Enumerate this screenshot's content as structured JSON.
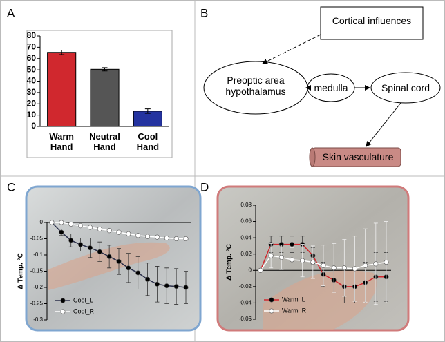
{
  "panel_labels": [
    "A",
    "B",
    "C",
    "D"
  ],
  "chart_data": [
    {
      "type": "bar",
      "categories": [
        "Warm Hand",
        "Neutral Hand",
        "Cool Hand"
      ],
      "values": [
        65.5,
        50.5,
        13.5
      ],
      "errors": [
        2,
        1.5,
        2
      ],
      "colors": [
        "#d0282e",
        "#555555",
        "#2433a0"
      ],
      "ylim": [
        0,
        80
      ],
      "yticks": [
        0,
        10,
        20,
        30,
        40,
        50,
        60,
        70,
        80
      ]
    },
    {
      "type": "line",
      "y_label": "Δ Temp. °C",
      "categories": [
        null,
        null,
        null,
        null,
        null,
        null,
        null,
        null,
        null,
        null,
        null,
        null,
        null,
        null,
        null
      ],
      "series": [
        {
          "name": "Cool_L",
          "color": "#2a2f4a",
          "marker_color": "#000000",
          "values": [
            0,
            -0.03,
            -0.055,
            -0.068,
            -0.078,
            -0.09,
            -0.105,
            -0.12,
            -0.14,
            -0.155,
            -0.175,
            -0.19,
            -0.195,
            -0.197,
            -0.2
          ],
          "errors": [
            0,
            0.01,
            0.02,
            0.02,
            0.03,
            0.03,
            0.035,
            0.04,
            0.045,
            0.05,
            0.05,
            0.055,
            0.055,
            0.055,
            0.05
          ]
        },
        {
          "name": "Cool_R",
          "color": "#ffffff",
          "marker_color": "#ffffff",
          "values": [
            0,
            0,
            -0.005,
            -0.01,
            -0.015,
            -0.02,
            -0.025,
            -0.03,
            -0.035,
            -0.04,
            -0.043,
            -0.045,
            -0.048,
            -0.05,
            -0.05
          ]
        }
      ],
      "ylim": [
        -0.3,
        0
      ],
      "yticks": [
        0,
        -0.05,
        -0.1,
        -0.15,
        -0.2,
        -0.25,
        -0.3
      ],
      "legend": "lower left"
    },
    {
      "type": "line",
      "y_label": "Δ Temp. °C",
      "categories": [
        null,
        null,
        null,
        null,
        null,
        null,
        null,
        null,
        null,
        null,
        null,
        null,
        null
      ],
      "series": [
        {
          "name": "Warm_L",
          "color": "#d0282e",
          "marker_color": "#000000",
          "values": [
            0,
            0.032,
            0.032,
            0.032,
            0.032,
            0.018,
            -0.005,
            -0.012,
            -0.02,
            -0.02,
            -0.015,
            -0.008,
            -0.008
          ],
          "errors": [
            0,
            0.01,
            0.01,
            0.01,
            0.01,
            0.01,
            0.015,
            0.015,
            0.02,
            0.02,
            0.025,
            0.03,
            0.03
          ]
        },
        {
          "name": "Warm_R",
          "color": "#ffffff",
          "marker_color": "#ffffff",
          "values": [
            0,
            0.018,
            0.016,
            0.013,
            0.012,
            0.01,
            0.006,
            0.003,
            0.003,
            0.002,
            0.006,
            0.008,
            0.01
          ],
          "errors": [
            0,
            0.015,
            0.015,
            0.015,
            0.02,
            0.02,
            0.025,
            0.03,
            0.035,
            0.04,
            0.045,
            0.05,
            0.05
          ]
        }
      ],
      "ylim": [
        -0.06,
        0.08
      ],
      "yticks": [
        -0.06,
        -0.04,
        -0.02,
        0,
        0.02,
        0.04,
        0.06,
        0.08
      ],
      "legend": "lower left"
    }
  ],
  "diagram": {
    "nodes": [
      {
        "label": "Cortical influences"
      },
      {
        "label": "Preoptic area hypothalamus"
      },
      {
        "label": "medulla"
      },
      {
        "label": "Spinal cord"
      },
      {
        "label": "Skin vasculature"
      }
    ]
  }
}
